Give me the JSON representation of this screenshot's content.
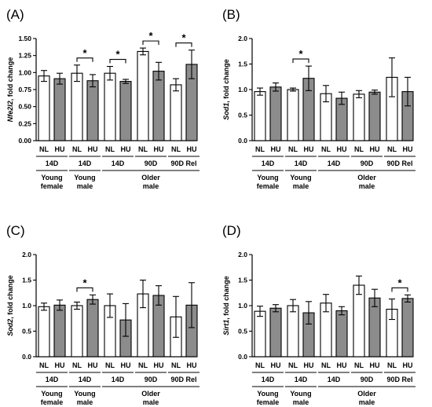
{
  "chart_data": [
    {
      "panel": "(A)",
      "type": "bar",
      "ylabel_italic": "Nfe2l2",
      "ylabel_rest": ", fold change",
      "ylim": [
        0,
        1.5
      ],
      "yticks": [
        "0.00",
        "0.25",
        "0.50",
        "0.75",
        "1.00",
        "1.25",
        "1.50"
      ],
      "ytick_values": [
        0,
        0.25,
        0.5,
        0.75,
        1.0,
        1.25,
        1.5
      ],
      "categories": [
        "NL",
        "HU",
        "NL",
        "HU",
        "NL",
        "HU",
        "NL",
        "HU",
        "NL",
        "HU"
      ],
      "values": [
        0.95,
        0.91,
        0.99,
        0.88,
        0.99,
        0.87,
        1.31,
        1.02,
        0.82,
        1.12
      ],
      "errors": [
        0.08,
        0.08,
        0.12,
        0.09,
        0.1,
        0.03,
        0.05,
        0.13,
        0.09,
        0.21
      ],
      "fills": [
        "white",
        "gray",
        "white",
        "gray",
        "white",
        "gray",
        "white",
        "gray",
        "white",
        "gray"
      ],
      "significance": [
        {
          "pair": 1,
          "label": "*"
        },
        {
          "pair": 2,
          "label": "*"
        },
        {
          "pair": 3,
          "label": "*"
        },
        {
          "pair": 4,
          "label": "*"
        }
      ]
    },
    {
      "panel": "(B)",
      "type": "bar",
      "ylabel_italic": "Sod1",
      "ylabel_rest": ", fold change",
      "ylim": [
        0,
        2.0
      ],
      "yticks": [
        "0.0",
        "0.5",
        "1.0",
        "1.5",
        "2.0"
      ],
      "ytick_values": [
        0,
        0.5,
        1.0,
        1.5,
        2.0
      ],
      "categories": [
        "NL",
        "HU",
        "NL",
        "HU",
        "NL",
        "HU",
        "NL",
        "HU",
        "NL",
        "HU"
      ],
      "values": [
        0.96,
        1.05,
        1.0,
        1.22,
        0.92,
        0.83,
        0.91,
        0.95,
        1.24,
        0.96
      ],
      "errors": [
        0.07,
        0.08,
        0.03,
        0.24,
        0.16,
        0.12,
        0.07,
        0.04,
        0.38,
        0.28
      ],
      "fills": [
        "white",
        "gray",
        "white",
        "gray",
        "white",
        "gray",
        "white",
        "gray",
        "white",
        "gray"
      ],
      "significance": [
        {
          "pair": 1,
          "label": "*"
        }
      ]
    },
    {
      "panel": "(C)",
      "type": "bar",
      "ylabel_italic": "Sod2",
      "ylabel_rest": ", fold change",
      "ylim": [
        0,
        2.0
      ],
      "yticks": [
        "0.0",
        "0.5",
        "1.0",
        "1.5",
        "2.0"
      ],
      "ytick_values": [
        0,
        0.5,
        1.0,
        1.5,
        2.0
      ],
      "categories": [
        "NL",
        "HU",
        "NL",
        "HU",
        "NL",
        "HU",
        "NL",
        "HU",
        "NL",
        "HU"
      ],
      "values": [
        0.98,
        1.01,
        1.0,
        1.12,
        1.0,
        0.72,
        1.23,
        1.2,
        0.78,
        1.01
      ],
      "errors": [
        0.07,
        0.1,
        0.07,
        0.09,
        0.23,
        0.32,
        0.27,
        0.19,
        0.4,
        0.44
      ],
      "fills": [
        "white",
        "gray",
        "white",
        "gray",
        "white",
        "gray",
        "white",
        "gray",
        "white",
        "gray"
      ],
      "significance": [
        {
          "pair": 1,
          "label": "*"
        }
      ]
    },
    {
      "panel": "(D)",
      "type": "bar",
      "ylabel_italic": "Sirt1",
      "ylabel_rest": ", fold change",
      "ylim": [
        0,
        2.0
      ],
      "yticks": [
        "0.0",
        "0.5",
        "1.0",
        "1.5",
        "2.0"
      ],
      "ytick_values": [
        0,
        0.5,
        1.0,
        1.5,
        2.0
      ],
      "categories": [
        "NL",
        "HU",
        "NL",
        "HU",
        "NL",
        "HU",
        "NL",
        "HU",
        "NL",
        "HU"
      ],
      "values": [
        0.89,
        0.95,
        1.0,
        0.86,
        1.05,
        0.9,
        1.4,
        1.15,
        0.93,
        1.14
      ],
      "errors": [
        0.1,
        0.07,
        0.12,
        0.22,
        0.17,
        0.08,
        0.18,
        0.17,
        0.2,
        0.07
      ],
      "fills": [
        "white",
        "gray",
        "white",
        "gray",
        "white",
        "gray",
        "white",
        "gray",
        "white",
        "gray"
      ],
      "significance": [
        {
          "pair": 4,
          "label": "*"
        }
      ]
    }
  ],
  "durations_AB": [
    "14D",
    "14D",
    "14D",
    "90D",
    "90D Rel"
  ],
  "durations_CD": [
    "14D",
    "14D",
    "14D",
    "90D",
    "90D Rel"
  ],
  "groups": [
    {
      "line1": "Young",
      "line2": "female",
      "pairs": [
        0
      ]
    },
    {
      "line1": "Young",
      "line2": "male",
      "pairs": [
        1
      ]
    },
    {
      "line1": "Older",
      "line2": "male",
      "pairs": [
        2,
        3,
        4
      ]
    }
  ],
  "colors": {
    "white_bar": "#ffffff",
    "gray_bar": "#8c8c8c",
    "axis": "#000000"
  }
}
